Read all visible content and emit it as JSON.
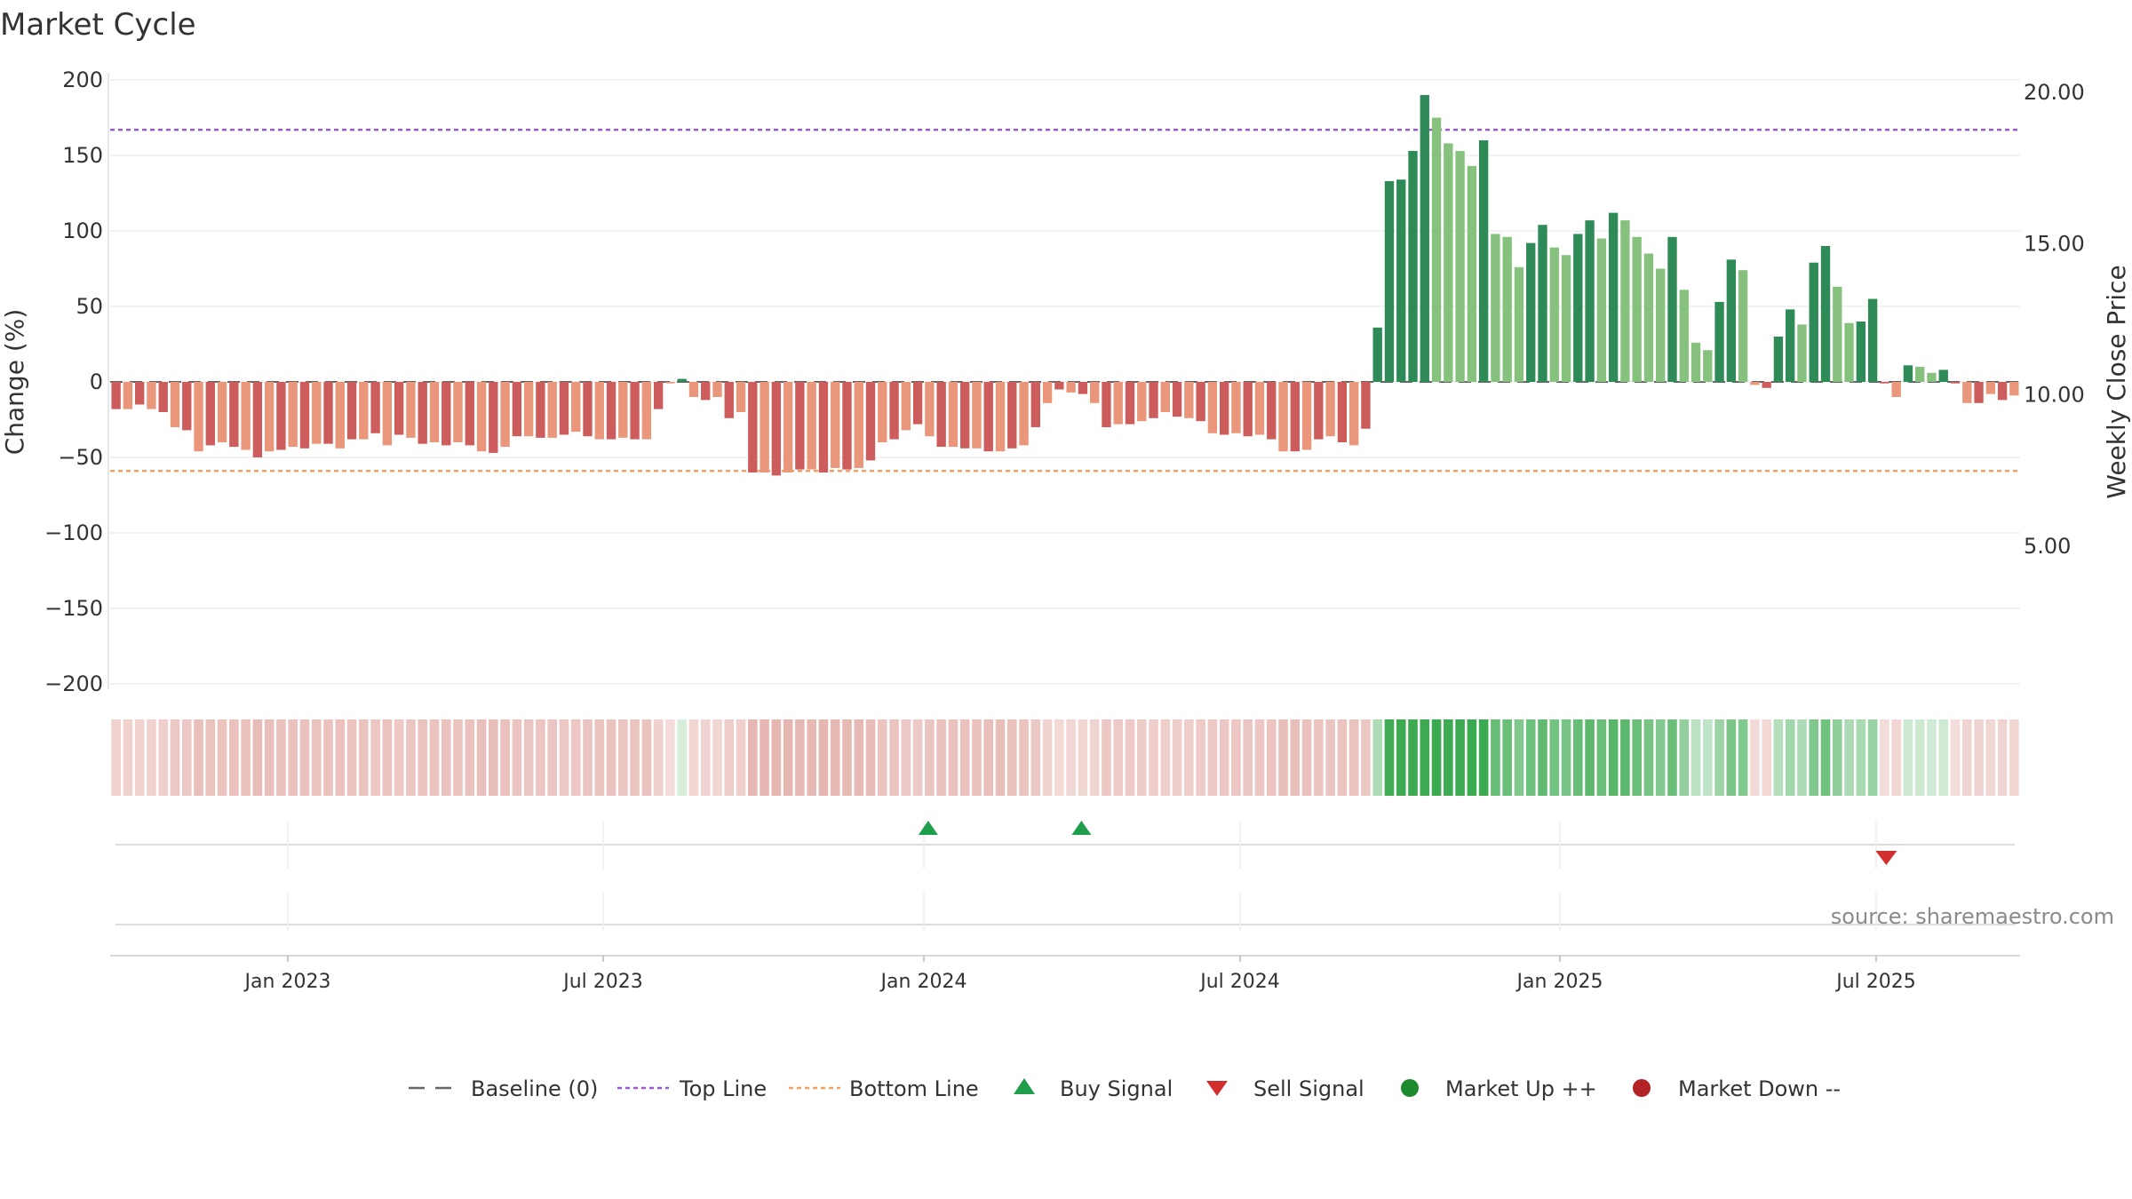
{
  "chart_data": {
    "type": "bar",
    "title": "Market Cycle",
    "ylabel": "Change (%)",
    "y2label": "Weekly Close Price",
    "ylim": [
      -200,
      200
    ],
    "yticks": [
      "200",
      "150",
      "100",
      "50",
      "0",
      "−50",
      "−100",
      "−150",
      "−200"
    ],
    "y2ticks": [
      "20.00",
      "15.00",
      "10.00",
      "5.00"
    ],
    "xticks": [
      "Jan 2023",
      "Jul 2023",
      "Jan 2024",
      "Jul 2024",
      "Jan 2025",
      "Jul 2025"
    ],
    "top_line": 167,
    "bottom_line": -59,
    "grid": true,
    "legend_position": "bottom",
    "legend": [
      {
        "label": "Baseline (0)",
        "symbol": "dash",
        "color": "#666666"
      },
      {
        "label": "Top Line",
        "symbol": "dotted",
        "color": "#9b59d0"
      },
      {
        "label": "Bottom Line",
        "symbol": "dotted",
        "color": "#f0a060"
      },
      {
        "label": "Buy Signal",
        "symbol": "triangle-up",
        "color": "#1e9e4a"
      },
      {
        "label": "Sell Signal",
        "symbol": "triangle-down",
        "color": "#d32f2f"
      },
      {
        "label": "Market Up ++",
        "symbol": "circle",
        "color": "#1e8a2e"
      },
      {
        "label": "Market Down --",
        "symbol": "circle",
        "color": "#b22222"
      }
    ],
    "source": "source: sharemaestro.com",
    "series": [
      {
        "values": [
          -18,
          -18,
          -15,
          -18,
          -20,
          -30,
          -32,
          -46,
          -42,
          -40,
          -43,
          -45,
          -50,
          -46,
          -45,
          -43,
          -44,
          -41,
          -41,
          -44,
          -38,
          -38,
          -34,
          -42,
          -35,
          -37,
          -41,
          -40,
          -42,
          -40,
          -42,
          -46,
          -47,
          -43,
          -36,
          -36,
          -37,
          -37,
          -35,
          -33,
          -36,
          -38,
          -38,
          -37,
          -38,
          -38,
          -18,
          -1,
          2,
          -10,
          -12,
          -10,
          -24,
          -20,
          -60,
          -60,
          -62,
          -60,
          -58,
          -58,
          -60,
          -57,
          -58,
          -57,
          -52,
          -40,
          -38,
          -32,
          -28,
          -36,
          -43,
          -43,
          -44,
          -44,
          -46,
          -46,
          -44,
          -42,
          -30,
          -14,
          -5,
          -7,
          -8,
          -14,
          -30,
          -28,
          -28,
          -26,
          -24,
          -20,
          -23,
          -24,
          -26,
          -34,
          -35,
          -34,
          -36,
          -35,
          -38,
          -46,
          -46,
          -45,
          -38,
          -36,
          -40,
          -42,
          -31,
          36,
          133,
          134,
          153,
          190,
          175,
          158,
          153,
          143,
          160,
          98,
          96,
          76,
          92,
          104,
          89,
          84,
          98,
          107,
          95,
          112,
          107,
          96,
          85,
          75,
          96,
          61,
          26,
          21,
          53,
          81,
          74,
          -2,
          -4,
          30,
          48,
          38,
          79,
          90,
          63,
          39,
          40,
          55,
          -1,
          -10,
          11,
          10,
          6,
          8,
          -1,
          -14,
          -14,
          -8,
          -12,
          -9
        ]
      }
    ],
    "buy_signal_weeks": [
      69,
      82
    ],
    "sell_signal_weeks": [
      150
    ]
  }
}
